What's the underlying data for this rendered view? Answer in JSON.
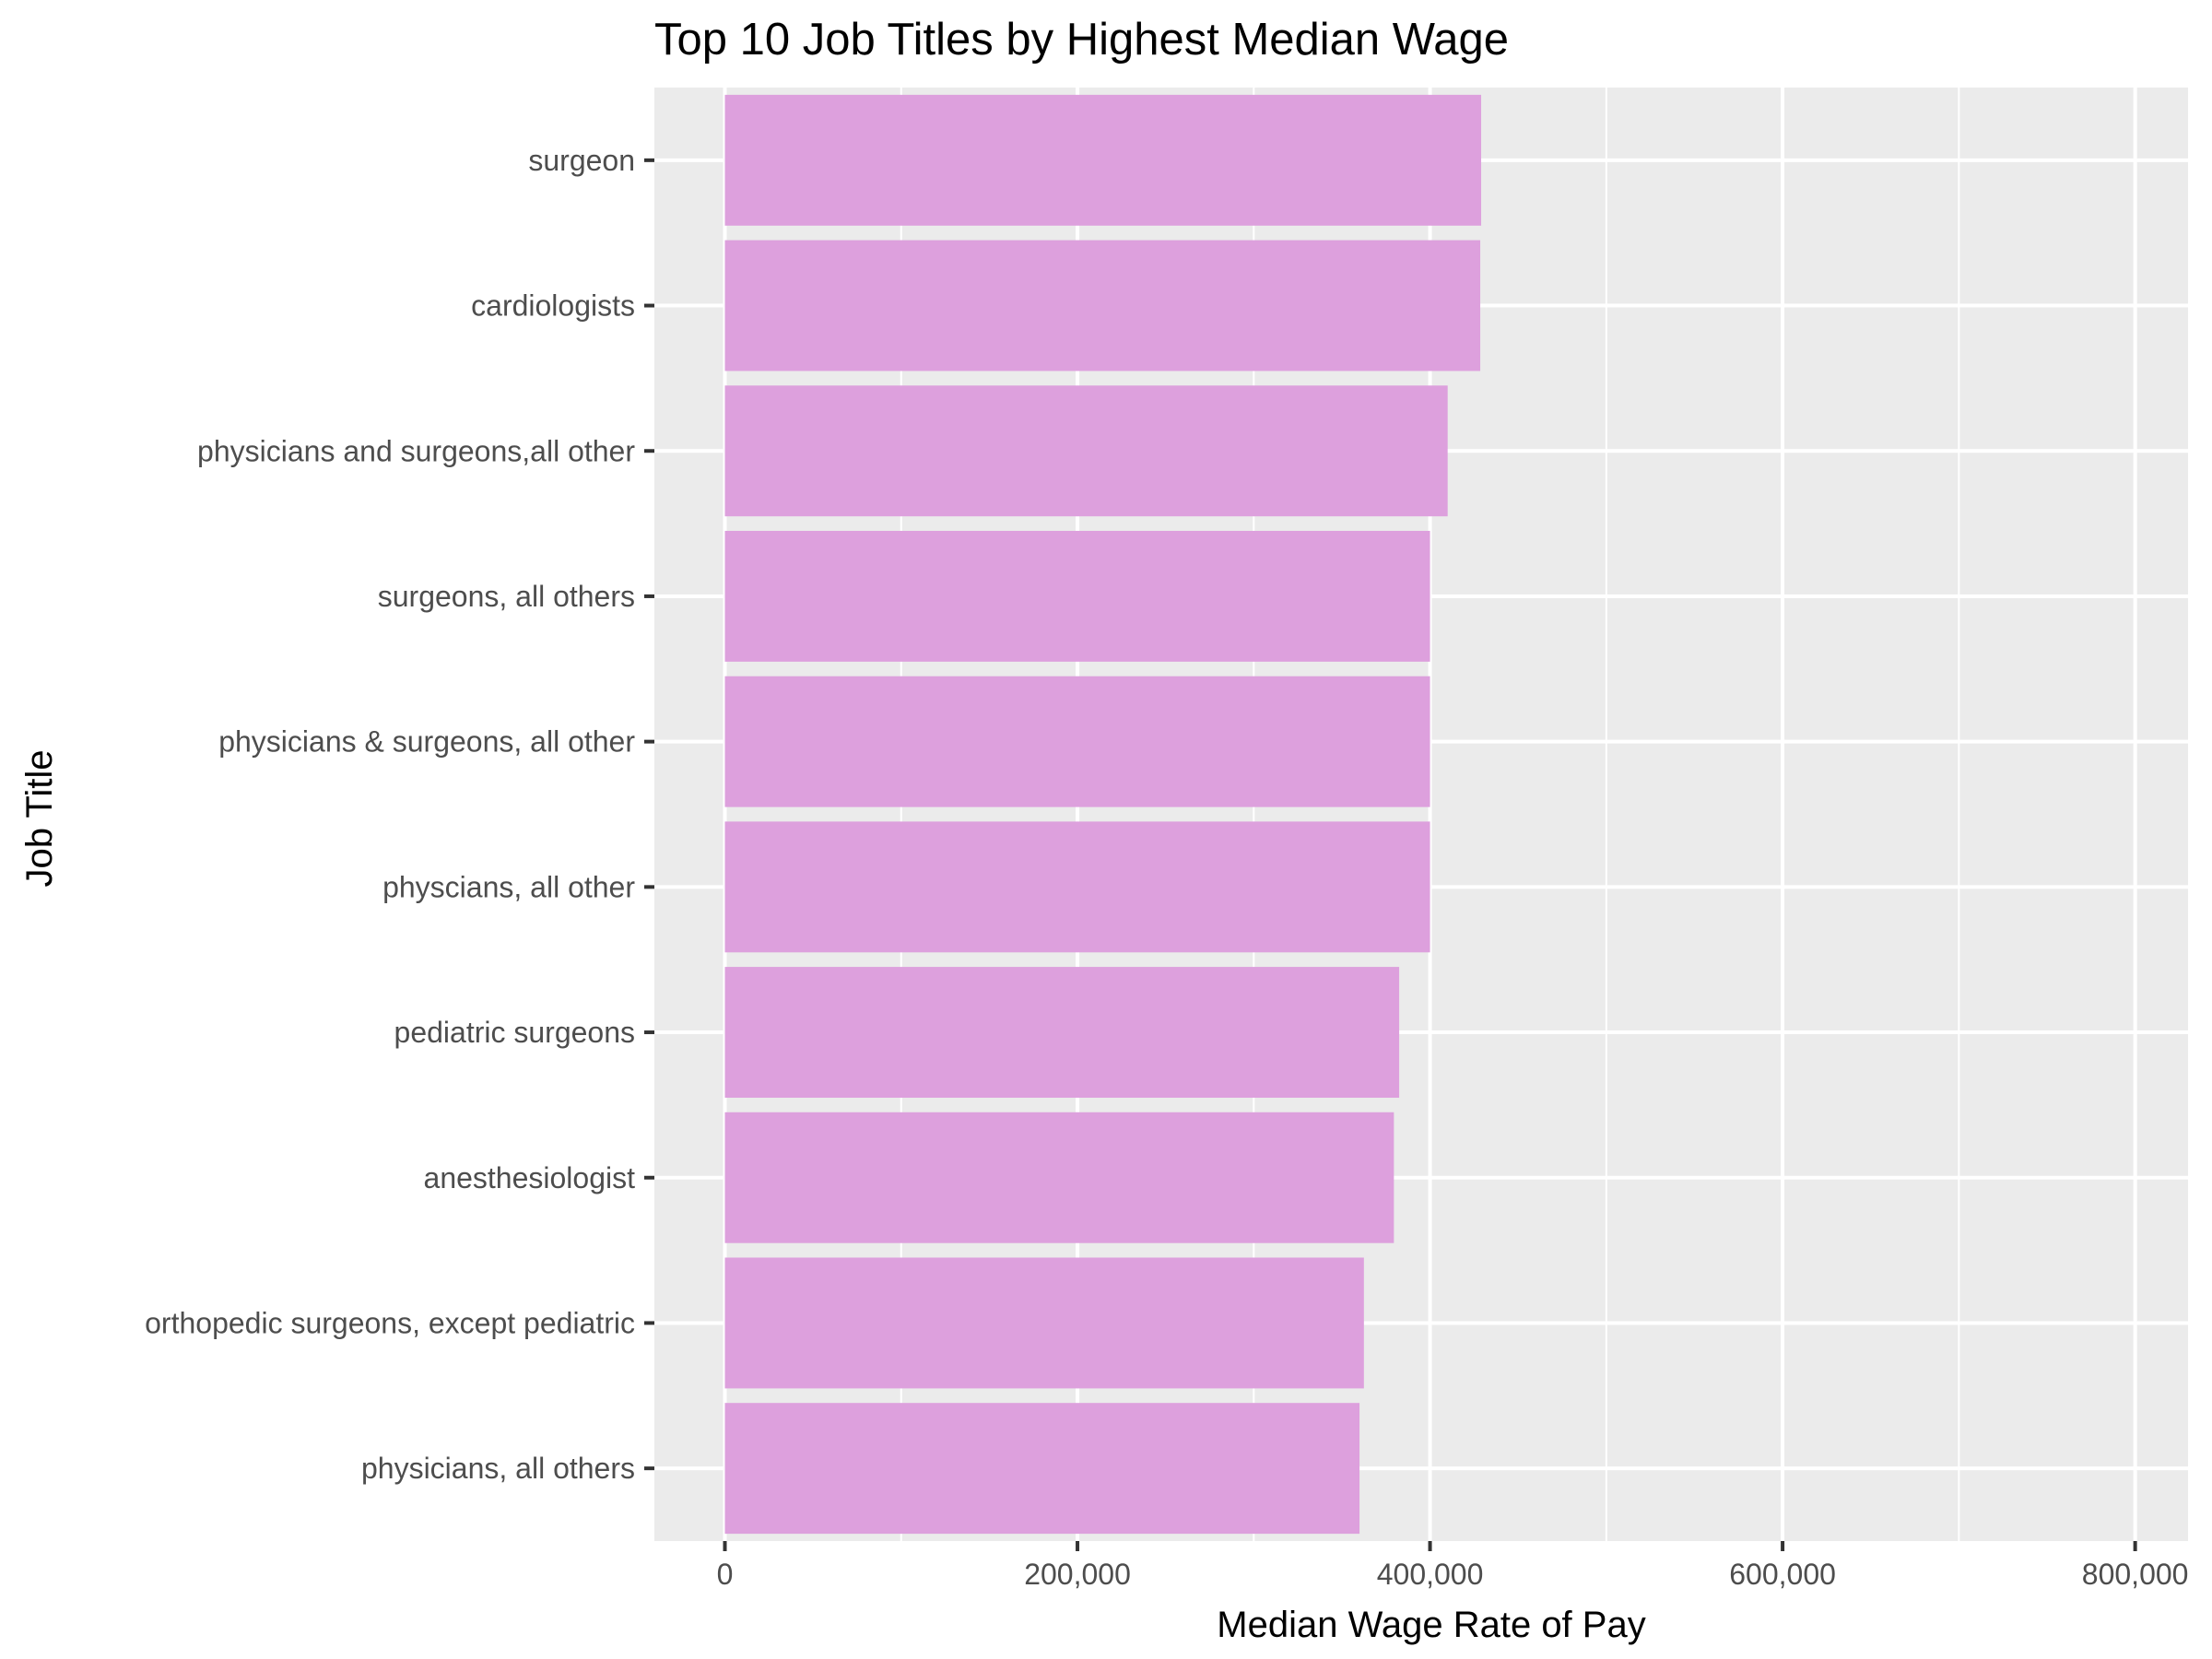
{
  "chart_data": {
    "type": "bar",
    "orientation": "horizontal",
    "title": "Top 10 Job Titles by Highest Median Wage",
    "xlabel": "Median Wage Rate of Pay",
    "ylabel": "Job Title",
    "categories": [
      "surgeon",
      "cardiologists",
      "physicians and surgeons,all other",
      "surgeons, all others",
      "physicians & surgeons, all other",
      "physcians, all other",
      "pediatric surgeons",
      "anesthesiologist",
      "orthopedic surgeons, except pediatric",
      "physicians, all others"
    ],
    "values": [
      429000,
      428500,
      410000,
      400000,
      400000,
      400000,
      382500,
      379500,
      362500,
      360000
    ],
    "xlim": [
      -40000,
      830000
    ],
    "xticks": [
      0,
      200000,
      400000,
      600000,
      800000
    ],
    "xtick_labels": [
      "0",
      "200,000",
      "400,000",
      "600,000",
      "800,000"
    ],
    "bar_color": "#dda0dd",
    "panel_background": "#ebebeb",
    "grid_color": "#ffffff",
    "grid": true
  }
}
